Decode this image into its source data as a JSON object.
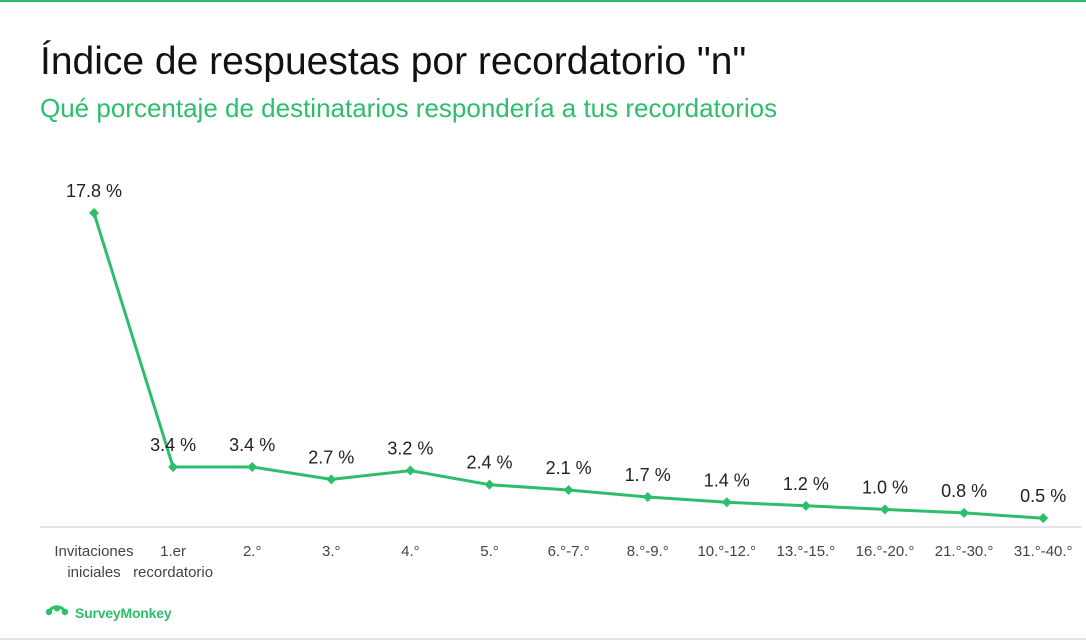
{
  "title": "Índice de respuestas por recordatorio \"n\"",
  "subtitle": "Qué porcentaje de destinatarios respondería a tus recordatorios",
  "brand": {
    "name": "SurveyMonkey",
    "color": "#2dbe6c",
    "logo_icon": "surveymonkey-logo-icon"
  },
  "colors": {
    "accent": "#2dbe6c",
    "text": "#111111",
    "axis_line": "#cccccc"
  },
  "chart_data": {
    "type": "line",
    "categories": [
      [
        "Invitaciones",
        "iniciales"
      ],
      [
        "1.er",
        "recordatorio"
      ],
      [
        "2.°"
      ],
      [
        "3.°"
      ],
      [
        "4.°"
      ],
      [
        "5.°"
      ],
      [
        "6.°-7.°"
      ],
      [
        "8.°-9.°"
      ],
      [
        "10.°-12.°"
      ],
      [
        "13.°-15.°"
      ],
      [
        "16.°-20.°"
      ],
      [
        "21.°-30.°"
      ],
      [
        "31.°-40.°"
      ]
    ],
    "values": [
      17.8,
      3.4,
      3.4,
      2.7,
      3.2,
      2.4,
      2.1,
      1.7,
      1.4,
      1.2,
      1.0,
      0.8,
      0.5
    ],
    "value_labels": [
      "17.8 %",
      "3.4 %",
      "3.4 %",
      "2.7 %",
      "3.2 %",
      "2.4 %",
      "2.1 %",
      "1.7 %",
      "1.4 %",
      "1.2 %",
      "1.0 %",
      "0.8 %",
      "0.5 %"
    ],
    "title": "Índice de respuestas por recordatorio \"n\"",
    "subtitle": "Qué porcentaje de destinatarios respondería a tus recordatorios",
    "xlabel": "",
    "ylabel": "",
    "ylim": [
      0,
      18.2
    ],
    "grid": false,
    "legend": "none",
    "marker": "diamond",
    "series_color": "#2dbe6c"
  }
}
